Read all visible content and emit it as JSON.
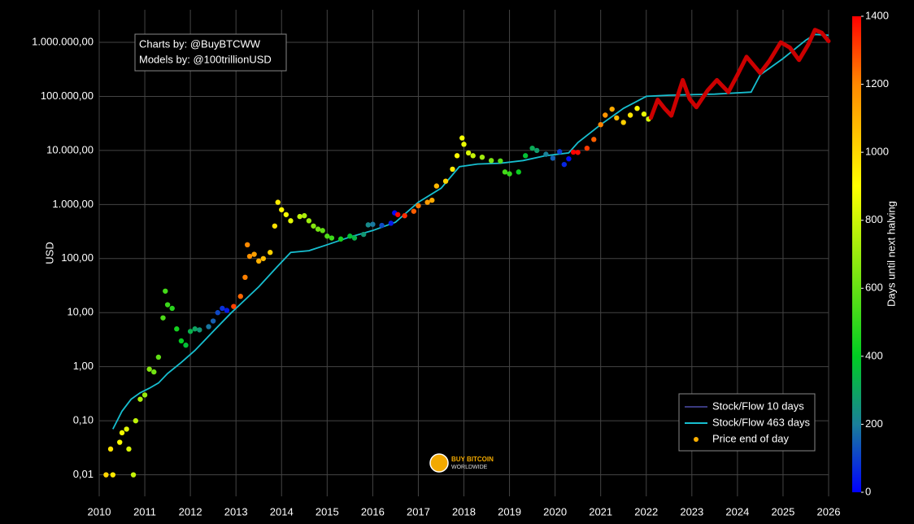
{
  "chart_data": {
    "type": "scatter",
    "ylabel": "USD",
    "annotations": [
      "Charts by: @BuyBTCWW",
      "Models by: @100trillionUSD"
    ],
    "logo": [
      "BUY BITCOIN",
      "WORLDWIDE"
    ],
    "log_y": true,
    "grid": true,
    "legend": "lower right",
    "xlim": [
      2010,
      2026
    ],
    "xticks": [
      2010,
      2011,
      2012,
      2013,
      2014,
      2015,
      2016,
      2017,
      2018,
      2019,
      2020,
      2021,
      2022,
      2023,
      2024,
      2025,
      2026
    ],
    "ylim": [
      0.004,
      4000000
    ],
    "yticks": [
      {
        "value": 0.01,
        "label": "0,01"
      },
      {
        "value": 0.1,
        "label": "0,10"
      },
      {
        "value": 1,
        "label": "1,00"
      },
      {
        "value": 10,
        "label": "10,00"
      },
      {
        "value": 100,
        "label": "100,00"
      },
      {
        "value": 1000,
        "label": "1.000,00"
      },
      {
        "value": 10000,
        "label": "10.000,00"
      },
      {
        "value": 100000,
        "label": "100.000,00"
      },
      {
        "value": 1000000,
        "label": "1.000.000,00"
      }
    ],
    "colorbar": {
      "label": "Days until next halving",
      "clim": [
        0,
        1400
      ],
      "ticks": [
        0,
        200,
        400,
        600,
        800,
        1000,
        1200,
        1400
      ],
      "colorscale": [
        [
          0,
          "#0000ff"
        ],
        [
          200,
          "#1a7f9a"
        ],
        [
          400,
          "#00cc22"
        ],
        [
          900,
          "#ffff00"
        ],
        [
          1200,
          "#ff8800"
        ],
        [
          1400,
          "#ff0000"
        ]
      ]
    },
    "series": [
      {
        "name": "Stock/Flow 10 days",
        "color": "#3a3a80",
        "mode": "line",
        "x": [],
        "values": []
      },
      {
        "name": "Stock/Flow 463 days",
        "color": "#17becf",
        "mode": "line",
        "x": [
          2010.3,
          2010.5,
          2010.7,
          2010.9,
          2011.1,
          2011.3,
          2011.5,
          2011.8,
          2012.1,
          2012.5,
          2012.9,
          2013.0,
          2013.5,
          2013.9,
          2014.2,
          2014.6,
          2015.0,
          2015.5,
          2016.0,
          2016.5,
          2017.0,
          2017.5,
          2017.9,
          2018.3,
          2018.8,
          2019.3,
          2019.8,
          2020.3,
          2020.5,
          2021.0,
          2021.5,
          2022.0,
          2022.5,
          2023.5,
          2024.3,
          2024.5,
          2025.0,
          2025.5,
          2025.7,
          2026.0
        ],
        "values": [
          0.07,
          0.15,
          0.25,
          0.33,
          0.4,
          0.5,
          0.75,
          1.2,
          2.0,
          4.5,
          10,
          12,
          30,
          70,
          130,
          140,
          180,
          250,
          330,
          470,
          1100,
          2000,
          5000,
          5600,
          5800,
          6500,
          8000,
          9000,
          14000,
          30000,
          60000,
          100000,
          105000,
          110000,
          120000,
          250000,
          500000,
          1100000,
          1400000,
          1350000
        ]
      },
      {
        "name": "Price end of day",
        "color": "#ffb000",
        "mode": "markers",
        "x": [
          2010.15,
          2010.25,
          2010.3,
          2010.45,
          2010.5,
          2010.6,
          2010.65,
          2010.75,
          2010.8,
          2010.9,
          2011.0,
          2011.1,
          2011.2,
          2011.3,
          2011.4,
          2011.45,
          2011.5,
          2011.6,
          2011.7,
          2011.8,
          2011.9,
          2012.0,
          2012.1,
          2012.2,
          2012.4,
          2012.5,
          2012.6,
          2012.7,
          2012.8,
          2012.95,
          2013.1,
          2013.2,
          2013.25,
          2013.3,
          2013.4,
          2013.5,
          2013.6,
          2013.75,
          2013.85,
          2013.92,
          2014.0,
          2014.1,
          2014.2,
          2014.4,
          2014.5,
          2014.6,
          2014.7,
          2014.8,
          2014.9,
          2015.0,
          2015.1,
          2015.3,
          2015.5,
          2015.6,
          2015.8,
          2015.9,
          2016.0,
          2016.2,
          2016.4,
          2016.48,
          2016.55,
          2016.7,
          2016.9,
          2017.0,
          2017.2,
          2017.3,
          2017.4,
          2017.6,
          2017.75,
          2017.85,
          2017.96,
          2018.0,
          2018.1,
          2018.2,
          2018.4,
          2018.6,
          2018.8,
          2018.9,
          2019.0,
          2019.2,
          2019.35,
          2019.5,
          2019.6,
          2019.8,
          2019.95,
          2020.1,
          2020.2,
          2020.3,
          2020.4,
          2020.5,
          2020.7,
          2020.85,
          2021.0,
          2021.1,
          2021.25,
          2021.35,
          2021.5,
          2021.65,
          2021.8,
          2021.95,
          2022.05
        ],
        "values": [
          0.01,
          0.03,
          0.01,
          0.04,
          0.06,
          0.07,
          0.03,
          0.01,
          0.1,
          0.25,
          0.3,
          0.9,
          0.8,
          1.5,
          8,
          25,
          14,
          12,
          5,
          3,
          2.5,
          4.5,
          5,
          4.8,
          5.5,
          7,
          10,
          12,
          11,
          13,
          20,
          45,
          180,
          110,
          120,
          90,
          100,
          130,
          400,
          1100,
          800,
          650,
          500,
          600,
          620,
          500,
          400,
          350,
          330,
          260,
          240,
          230,
          260,
          240,
          280,
          420,
          430,
          410,
          450,
          700,
          650,
          620,
          750,
          950,
          1100,
          1200,
          2200,
          2700,
          4500,
          8000,
          17000,
          13000,
          9000,
          8000,
          7500,
          6500,
          6400,
          4000,
          3700,
          4000,
          8000,
          11000,
          10000,
          8500,
          7200,
          9500,
          5500,
          7000,
          9300,
          9200,
          11000,
          16000,
          30000,
          45000,
          58000,
          40000,
          33000,
          45000,
          60000,
          47000,
          38000
        ],
        "days": [
          1007,
          971,
          953,
          898,
          880,
          843,
          825,
          788,
          770,
          734,
          697,
          661,
          624,
          588,
          551,
          533,
          515,
          478,
          442,
          405,
          369,
          332,
          296,
          259,
          186,
          150,
          113,
          77,
          40,
          1303,
          1248,
          1212,
          1194,
          1175,
          1139,
          1102,
          1066,
          1011,
          975,
          949,
          920,
          883,
          847,
          774,
          737,
          701,
          664,
          628,
          591,
          555,
          518,
          445,
          372,
          336,
          263,
          226,
          190,
          117,
          44,
          15,
          1391,
          1336,
          1263,
          1226,
          1153,
          1117,
          1080,
          1007,
          953,
          916,
          876,
          861,
          825,
          788,
          715,
          642,
          569,
          533,
          496,
          423,
          369,
          314,
          277,
          204,
          150,
          95,
          58,
          22,
          1400,
          1387,
          1314,
          1259,
          1205,
          1168,
          1113,
          1077,
          1022,
          967,
          913,
          858,
          821
        ]
      },
      {
        "color": "#cc0000",
        "mode": "thick-line",
        "x": [
          2022.1,
          2022.25,
          2022.4,
          2022.55,
          2022.8,
          2022.95,
          2023.1,
          2023.35,
          2023.55,
          2023.8,
          2024.0,
          2024.2,
          2024.5,
          2024.7,
          2024.95,
          2025.15,
          2025.35,
          2025.55,
          2025.7,
          2025.85,
          2026.0
        ],
        "values": [
          40000,
          87000,
          60000,
          44000,
          200000,
          90000,
          63000,
          130000,
          200000,
          120000,
          250000,
          540000,
          270000,
          450000,
          1000000,
          800000,
          470000,
          900000,
          1700000,
          1500000,
          1050000
        ]
      }
    ]
  }
}
